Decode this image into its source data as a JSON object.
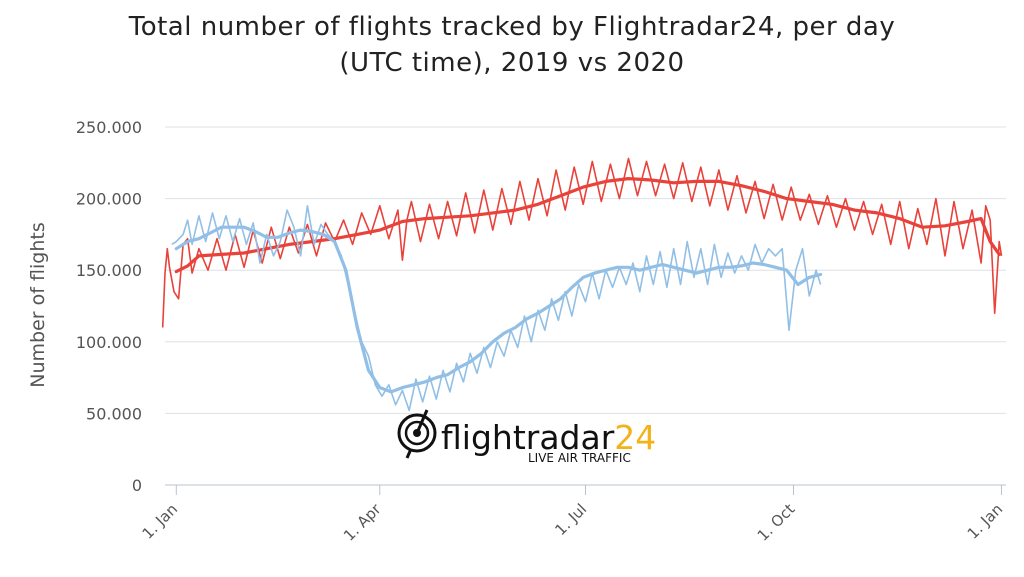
{
  "chart_data": {
    "type": "line",
    "title_line1": "Total number of flights tracked by Flightradar24, per day",
    "title_line2": "(UTC time), 2019 vs 2020",
    "ylabel": "Number of flights",
    "xlabel": "",
    "ylim": [
      0,
      250000
    ],
    "y_ticks": [
      0,
      50000,
      100000,
      150000,
      200000,
      250000
    ],
    "y_tick_labels": [
      "0",
      "50.000",
      "100.000",
      "150.000",
      "200.000",
      "250.000"
    ],
    "x_domain_days": [
      -5,
      367
    ],
    "x_ticks": [
      {
        "label": "1. Jan",
        "day": 0
      },
      {
        "label": "1. Apr",
        "day": 90
      },
      {
        "label": "1. Jul",
        "day": 181
      },
      {
        "label": "1. Oct",
        "day": 273
      },
      {
        "label": "1. Jan",
        "day": 365
      }
    ],
    "grid": true,
    "legend": "none",
    "series": [
      {
        "color": "#e8423a",
        "daily_x": [
          -6,
          -5,
          -4,
          -3,
          -1,
          1,
          3,
          5,
          7,
          10,
          14,
          18,
          22,
          26,
          30,
          34,
          38,
          42,
          46,
          50,
          54,
          58,
          62,
          66,
          70,
          74,
          78,
          82,
          86,
          90,
          94,
          98,
          100,
          102,
          104,
          108,
          112,
          116,
          120,
          124,
          128,
          132,
          136,
          140,
          144,
          148,
          152,
          156,
          160,
          164,
          168,
          172,
          176,
          180,
          184,
          188,
          192,
          196,
          200,
          204,
          208,
          212,
          216,
          220,
          224,
          228,
          232,
          236,
          240,
          244,
          248,
          252,
          256,
          260,
          264,
          268,
          272,
          276,
          280,
          284,
          288,
          292,
          296,
          300,
          304,
          308,
          312,
          316,
          320,
          324,
          328,
          332,
          336,
          340,
          344,
          348,
          352,
          356,
          358,
          360,
          362,
          364,
          365
        ],
        "daily_y": [
          110000,
          148000,
          165000,
          152000,
          135000,
          130000,
          168000,
          172000,
          148000,
          165000,
          150000,
          172000,
          150000,
          175000,
          152000,
          178000,
          155000,
          180000,
          158000,
          180000,
          162000,
          182000,
          160000,
          183000,
          170000,
          185000,
          168000,
          190000,
          175000,
          195000,
          172000,
          192000,
          157000,
          185000,
          198000,
          170000,
          196000,
          172000,
          198000,
          174000,
          204000,
          176000,
          206000,
          178000,
          207000,
          182000,
          212000,
          185000,
          214000,
          188000,
          220000,
          192000,
          222000,
          196000,
          226000,
          198000,
          224000,
          200000,
          228000,
          202000,
          226000,
          202000,
          224000,
          200000,
          225000,
          198000,
          222000,
          195000,
          220000,
          192000,
          216000,
          190000,
          212000,
          186000,
          210000,
          185000,
          208000,
          185000,
          203000,
          182000,
          202000,
          180000,
          200000,
          178000,
          198000,
          175000,
          196000,
          168000,
          198000,
          165000,
          193000,
          168000,
          200000,
          160000,
          198000,
          165000,
          192000,
          155000,
          195000,
          185000,
          120000,
          170000,
          160000
        ],
        "avg_x": [
          0,
          5,
          10,
          20,
          30,
          40,
          50,
          60,
          70,
          80,
          90,
          100,
          110,
          120,
          130,
          140,
          150,
          160,
          170,
          180,
          190,
          200,
          210,
          220,
          230,
          240,
          250,
          260,
          270,
          280,
          290,
          300,
          310,
          320,
          330,
          340,
          350,
          356,
          360,
          364
        ],
        "avg_y": [
          149000,
          153000,
          160000,
          161000,
          162000,
          165000,
          168000,
          170000,
          172000,
          175000,
          178000,
          184000,
          186000,
          187000,
          188000,
          190000,
          192000,
          196000,
          202000,
          208000,
          212000,
          214000,
          213000,
          211000,
          212000,
          212000,
          209000,
          205000,
          200000,
          198000,
          196000,
          192000,
          190000,
          186000,
          180000,
          181000,
          184000,
          186000,
          170000,
          161000
        ]
      },
      {
        "color": "#92bfe6",
        "daily_x": [
          -2,
          0,
          3,
          5,
          7,
          10,
          13,
          16,
          19,
          22,
          25,
          28,
          31,
          34,
          37,
          40,
          43,
          46,
          49,
          52,
          55,
          58,
          61,
          64,
          67,
          70,
          73,
          76,
          79,
          82,
          85,
          88,
          91,
          94,
          97,
          100,
          103,
          106,
          109,
          112,
          115,
          118,
          121,
          124,
          127,
          130,
          133,
          136,
          139,
          142,
          145,
          148,
          151,
          154,
          157,
          160,
          163,
          166,
          169,
          172,
          175,
          178,
          181,
          184,
          187,
          190,
          193,
          196,
          199,
          202,
          205,
          208,
          211,
          214,
          217,
          220,
          223,
          226,
          229,
          232,
          235,
          238,
          241,
          244,
          247,
          250,
          253,
          256,
          259,
          262,
          265,
          268,
          271,
          274,
          277,
          280,
          283,
          285
        ],
        "daily_y": [
          168000,
          170000,
          175000,
          185000,
          168000,
          188000,
          170000,
          190000,
          172000,
          188000,
          170000,
          186000,
          168000,
          183000,
          155000,
          175000,
          160000,
          170000,
          192000,
          180000,
          160000,
          195000,
          168000,
          182000,
          175000,
          170000,
          160000,
          140000,
          120000,
          100000,
          90000,
          70000,
          62000,
          70000,
          56000,
          66000,
          52000,
          74000,
          58000,
          76000,
          60000,
          80000,
          65000,
          85000,
          72000,
          92000,
          78000,
          96000,
          82000,
          100000,
          90000,
          108000,
          96000,
          118000,
          100000,
          122000,
          108000,
          130000,
          115000,
          135000,
          118000,
          140000,
          128000,
          148000,
          130000,
          150000,
          138000,
          152000,
          140000,
          155000,
          135000,
          160000,
          140000,
          163000,
          138000,
          165000,
          140000,
          170000,
          145000,
          165000,
          140000,
          168000,
          145000,
          162000,
          148000,
          160000,
          150000,
          168000,
          155000,
          165000,
          160000,
          165000,
          108000,
          150000,
          165000,
          132000,
          150000,
          140000
        ],
        "avg_x": [
          0,
          5,
          10,
          15,
          20,
          25,
          30,
          35,
          40,
          45,
          50,
          55,
          60,
          65,
          70,
          75,
          80,
          85,
          90,
          95,
          100,
          105,
          110,
          115,
          120,
          125,
          130,
          135,
          140,
          145,
          150,
          155,
          160,
          165,
          170,
          175,
          180,
          185,
          190,
          195,
          200,
          205,
          210,
          215,
          220,
          225,
          230,
          235,
          240,
          245,
          250,
          255,
          260,
          265,
          270,
          275,
          280,
          285
        ],
        "avg_y": [
          165000,
          170000,
          172000,
          176000,
          180000,
          180000,
          180000,
          177000,
          173000,
          173000,
          176000,
          178000,
          177000,
          175000,
          170000,
          150000,
          110000,
          80000,
          68000,
          65000,
          68000,
          70000,
          72000,
          75000,
          77000,
          82000,
          86000,
          92000,
          100000,
          106000,
          110000,
          116000,
          120000,
          125000,
          130000,
          138000,
          145000,
          148000,
          150000,
          152000,
          152000,
          150000,
          152000,
          154000,
          152000,
          150000,
          148000,
          150000,
          152000,
          152000,
          153000,
          155000,
          154000,
          152000,
          150000,
          140000,
          145000,
          147000
        ]
      }
    ]
  },
  "watermark": {
    "brand": "flightradar24",
    "brand_main": "flightradar",
    "brand_num": "24",
    "tagline": "LIVE AIR TRAFFIC"
  }
}
